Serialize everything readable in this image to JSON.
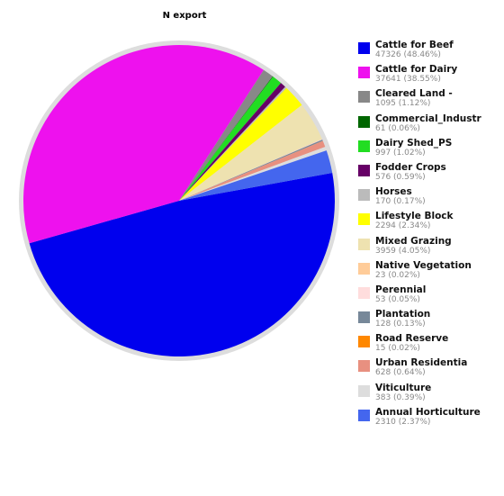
{
  "chart_data": {
    "type": "pie",
    "title": "N export",
    "legend_position": "right",
    "series": [
      {
        "name": "Cattle for Beef",
        "value": 47326,
        "label": "47326 (48.46%)",
        "color": "#0000ee"
      },
      {
        "name": "Cattle for Dairy",
        "value": 37641,
        "label": "37641 (38.55%)",
        "color": "#ee11ee"
      },
      {
        "name": "Cleared Land -",
        "value": 1095,
        "label": "1095 (1.12%)",
        "color": "#888888"
      },
      {
        "name": "Commercial_Industr",
        "value": 61,
        "label": "61 (0.06%)",
        "color": "#006600"
      },
      {
        "name": "Dairy Shed_PS",
        "value": 997,
        "label": "997 (1.02%)",
        "color": "#22dd22"
      },
      {
        "name": "Fodder Crops",
        "value": 576,
        "label": "576 (0.59%)",
        "color": "#660066"
      },
      {
        "name": "Horses",
        "value": 170,
        "label": "170 (0.17%)",
        "color": "#bbbbbb"
      },
      {
        "name": "Lifestyle Block",
        "value": 2294,
        "label": "2294 (2.34%)",
        "color": "#ffff00"
      },
      {
        "name": "Mixed Grazing",
        "value": 3959,
        "label": "3959 (4.05%)",
        "color": "#eee2b0"
      },
      {
        "name": "Native Vegetation",
        "value": 23,
        "label": "23 (0.02%)",
        "color": "#ffcc99"
      },
      {
        "name": "Perennial",
        "value": 53,
        "label": "53 (0.05%)",
        "color": "#ffdddd"
      },
      {
        "name": "Plantation",
        "value": 128,
        "label": "128 (0.13%)",
        "color": "#778899"
      },
      {
        "name": "Road Reserve",
        "value": 15,
        "label": "15 (0.02%)",
        "color": "#ff8800"
      },
      {
        "name": "Urban Residentia",
        "value": 628,
        "label": "628 (0.64%)",
        "color": "#e89080"
      },
      {
        "name": "Viticulture",
        "value": 383,
        "label": "383 (0.39%)",
        "color": "#dddddd"
      },
      {
        "name": "Annual Horticulture",
        "value": 2310,
        "label": "2310 (2.37%)",
        "color": "#4466ee"
      }
    ]
  }
}
